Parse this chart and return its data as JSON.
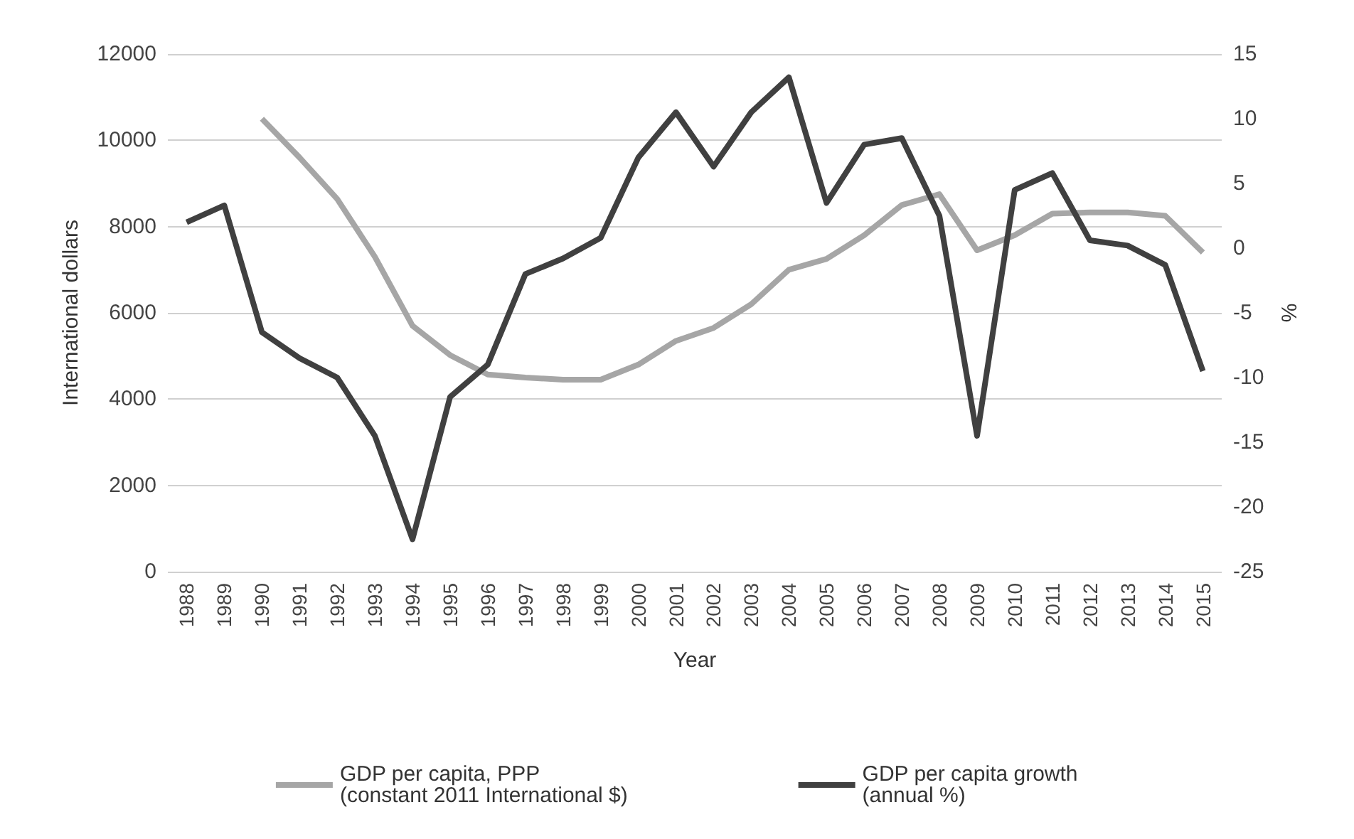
{
  "chart_data": {
    "type": "line",
    "xlabel": "Year",
    "ylabel": "International dollars",
    "y2label": "%",
    "categories": [
      "1988",
      "1989",
      "1990",
      "1991",
      "1992",
      "1993",
      "1994",
      "1995",
      "1996",
      "1997",
      "1998",
      "1999",
      "2000",
      "2001",
      "2002",
      "2003",
      "2004",
      "2005",
      "2006",
      "2007",
      "2008",
      "2009",
      "2010",
      "2011",
      "2012",
      "2013",
      "2014",
      "2015"
    ],
    "series": [
      {
        "name": "GDP per capita, PPP\n(constant 2011 International $)",
        "color": "#a6a6a6",
        "values": [
          null,
          null,
          10500,
          9600,
          8640,
          7300,
          5700,
          5020,
          4570,
          4500,
          4450,
          4450,
          4800,
          5350,
          5650,
          6200,
          7000,
          7250,
          7800,
          8500,
          8750,
          7450,
          7800,
          8300,
          8330,
          8330,
          8250,
          7400
        ]
      },
      {
        "name": "GDP per capita growth\n(annual %)",
        "color": "#404040",
        "axis": "y2",
        "values": [
          2.0,
          3.3,
          -6.5,
          -8.5,
          -10,
          -14.5,
          -22.5,
          -11.5,
          -9,
          -2,
          -0.8,
          0.8,
          7,
          10.5,
          6.3,
          10.5,
          13.2,
          3.5,
          8,
          8.5,
          2.5,
          -14.5,
          4.5,
          5.8,
          0.6,
          0.2,
          -1.3,
          -9.5
        ]
      }
    ],
    "ylim": [
      0,
      12000
    ],
    "yticks": [
      0,
      2000,
      4000,
      6000,
      8000,
      10000,
      12000
    ],
    "y2lim": [
      -25,
      15
    ],
    "y2ticks": [
      -25,
      -20,
      -15,
      -10,
      -5,
      0,
      5,
      10,
      15
    ],
    "grid": "y",
    "legend": "bottom",
    "marker": "none",
    "line_style": "solid"
  }
}
